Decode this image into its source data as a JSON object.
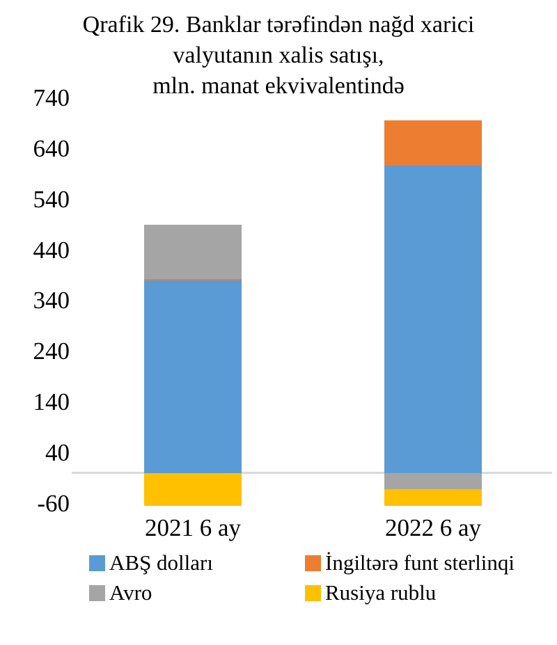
{
  "title_lines": [
    "Qrafik 29. Banklar tərəfindən nağd xarici",
    "valyutanın xalis satışı,",
    "mln. manat ekvivalentində"
  ],
  "chart_data": {
    "type": "bar",
    "stacked": true,
    "title": "Qrafik 29. Banklar tərəfindən nağd xarici valyutanın xalis satışı, mln. manat ekvivalentində",
    "categories": [
      "2021 6 ay",
      "2022 6 ay"
    ],
    "series": [
      {
        "name": "ABŞ dolları",
        "color": "#5B9BD5",
        "values": [
          380,
          607
        ]
      },
      {
        "name": "İngiltərə funt sterlinqi",
        "color": "#ED7D31",
        "values": [
          3,
          89
        ]
      },
      {
        "name": "Avro",
        "color": "#A5A5A5",
        "values": [
          107,
          -31
        ]
      },
      {
        "name": "Rusiya rublu",
        "color": "#FFC000",
        "values": [
          -65,
          -33
        ]
      }
    ],
    "yticks": [
      740,
      640,
      540,
      440,
      340,
      240,
      140,
      40,
      -60
    ],
    "ylim": [
      -60,
      740
    ],
    "xlabel": "",
    "ylabel": "",
    "gridlines": "zero-baseline-only",
    "zero_line_color": "#D9D9D9",
    "legend_position": "bottom"
  }
}
